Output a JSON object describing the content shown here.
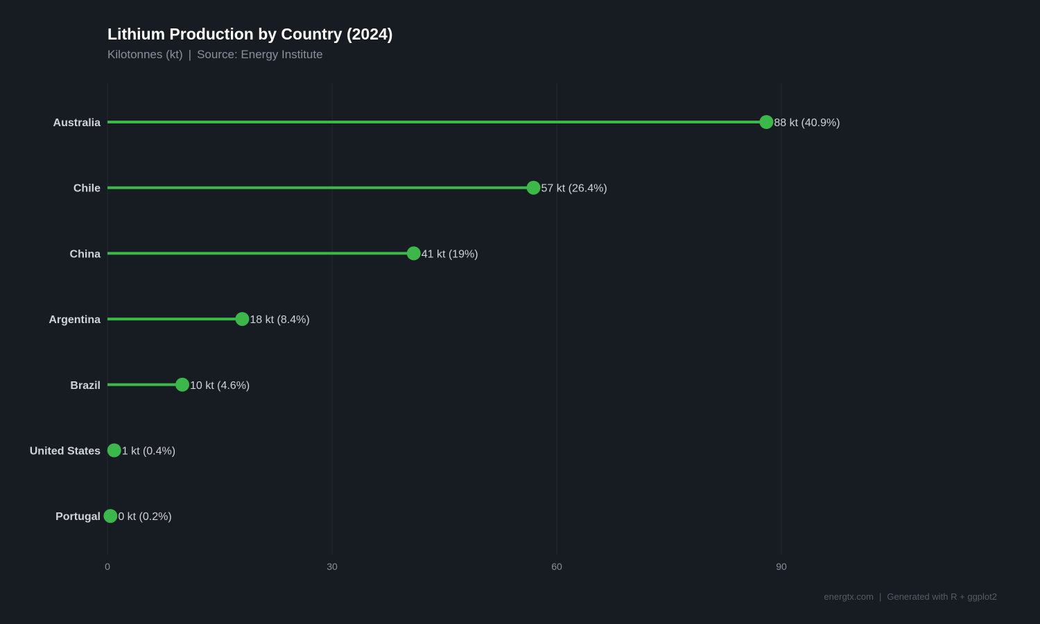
{
  "header": {
    "title": "Lithium Production by Country (2024)",
    "subtitle_unit": "Kilotonnes (kt)",
    "subtitle_source": "Source: Energy Institute",
    "separator": "|"
  },
  "footer": {
    "site": "energtx.com",
    "generator": "Generated with R + ggplot2",
    "separator": "|"
  },
  "chart_data": {
    "type": "lollipop",
    "orientation": "horizontal",
    "categories": [
      "Australia",
      "Chile",
      "China",
      "Argentina",
      "Brazil",
      "United States",
      "Portugal"
    ],
    "values": [
      88,
      56.9,
      40.9,
      18,
      10,
      0.9,
      0.4
    ],
    "data_labels": [
      "88 kt (40.9%)",
      "57 kt (26.4%)",
      "41 kt (19%)",
      "18 kt (8.4%)",
      "10 kt (4.6%)",
      "1 kt (0.4%)",
      "0 kt (0.2%)"
    ],
    "x_ticks": [
      0,
      30,
      60,
      90
    ],
    "x_tick_labels": [
      "0",
      "30",
      "60",
      "90"
    ],
    "xlim": [
      0,
      124
    ],
    "xlabel": "",
    "ylabel": "",
    "grid": "vertical major",
    "colors": {
      "background": "#171b22",
      "series": "#3cb84a",
      "grid": "#232932",
      "label": "#d0d3d8",
      "tick": "#8a909b"
    }
  }
}
